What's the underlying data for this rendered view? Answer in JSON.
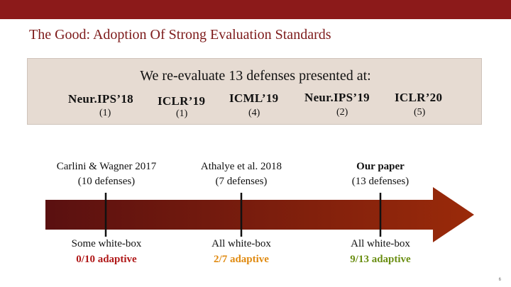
{
  "slide": {
    "title": "The Good: Adoption Of Strong Evaluation Standards",
    "panel_heading": "We re-evaluate 13 defenses presented at:",
    "venues": [
      {
        "name": "Neur.IPS’18",
        "count": "(1)"
      },
      {
        "name": "ICLR’19",
        "count": "(1)"
      },
      {
        "name": "ICML’19",
        "count": "(4)"
      },
      {
        "name": "Neur.IPS’19",
        "count": "(2)"
      },
      {
        "name": "ICLR’20",
        "count": "(5)"
      }
    ],
    "papers": [
      {
        "line1": "Carlini & Wagner 2017",
        "line2": "(10 defenses)"
      },
      {
        "line1": "Athalye et al. 2018",
        "line2": "(7 defenses)"
      },
      {
        "line1": "Our paper",
        "line2": "(13 defenses)"
      }
    ],
    "results": [
      {
        "line1": "Some white-box",
        "line2": "0/10 adaptive",
        "color": "#b01818"
      },
      {
        "line1": "All white-box",
        "line2": "2/7 adaptive",
        "color": "#e08a10"
      },
      {
        "line1": "All white-box",
        "line2": "9/13 adaptive",
        "color": "#6a8e12"
      }
    ],
    "page_number": "6",
    "colors": {
      "brand": "#8c1a1a",
      "arrow_start": "#5a1010",
      "arrow_end": "#9a2a0a"
    }
  }
}
